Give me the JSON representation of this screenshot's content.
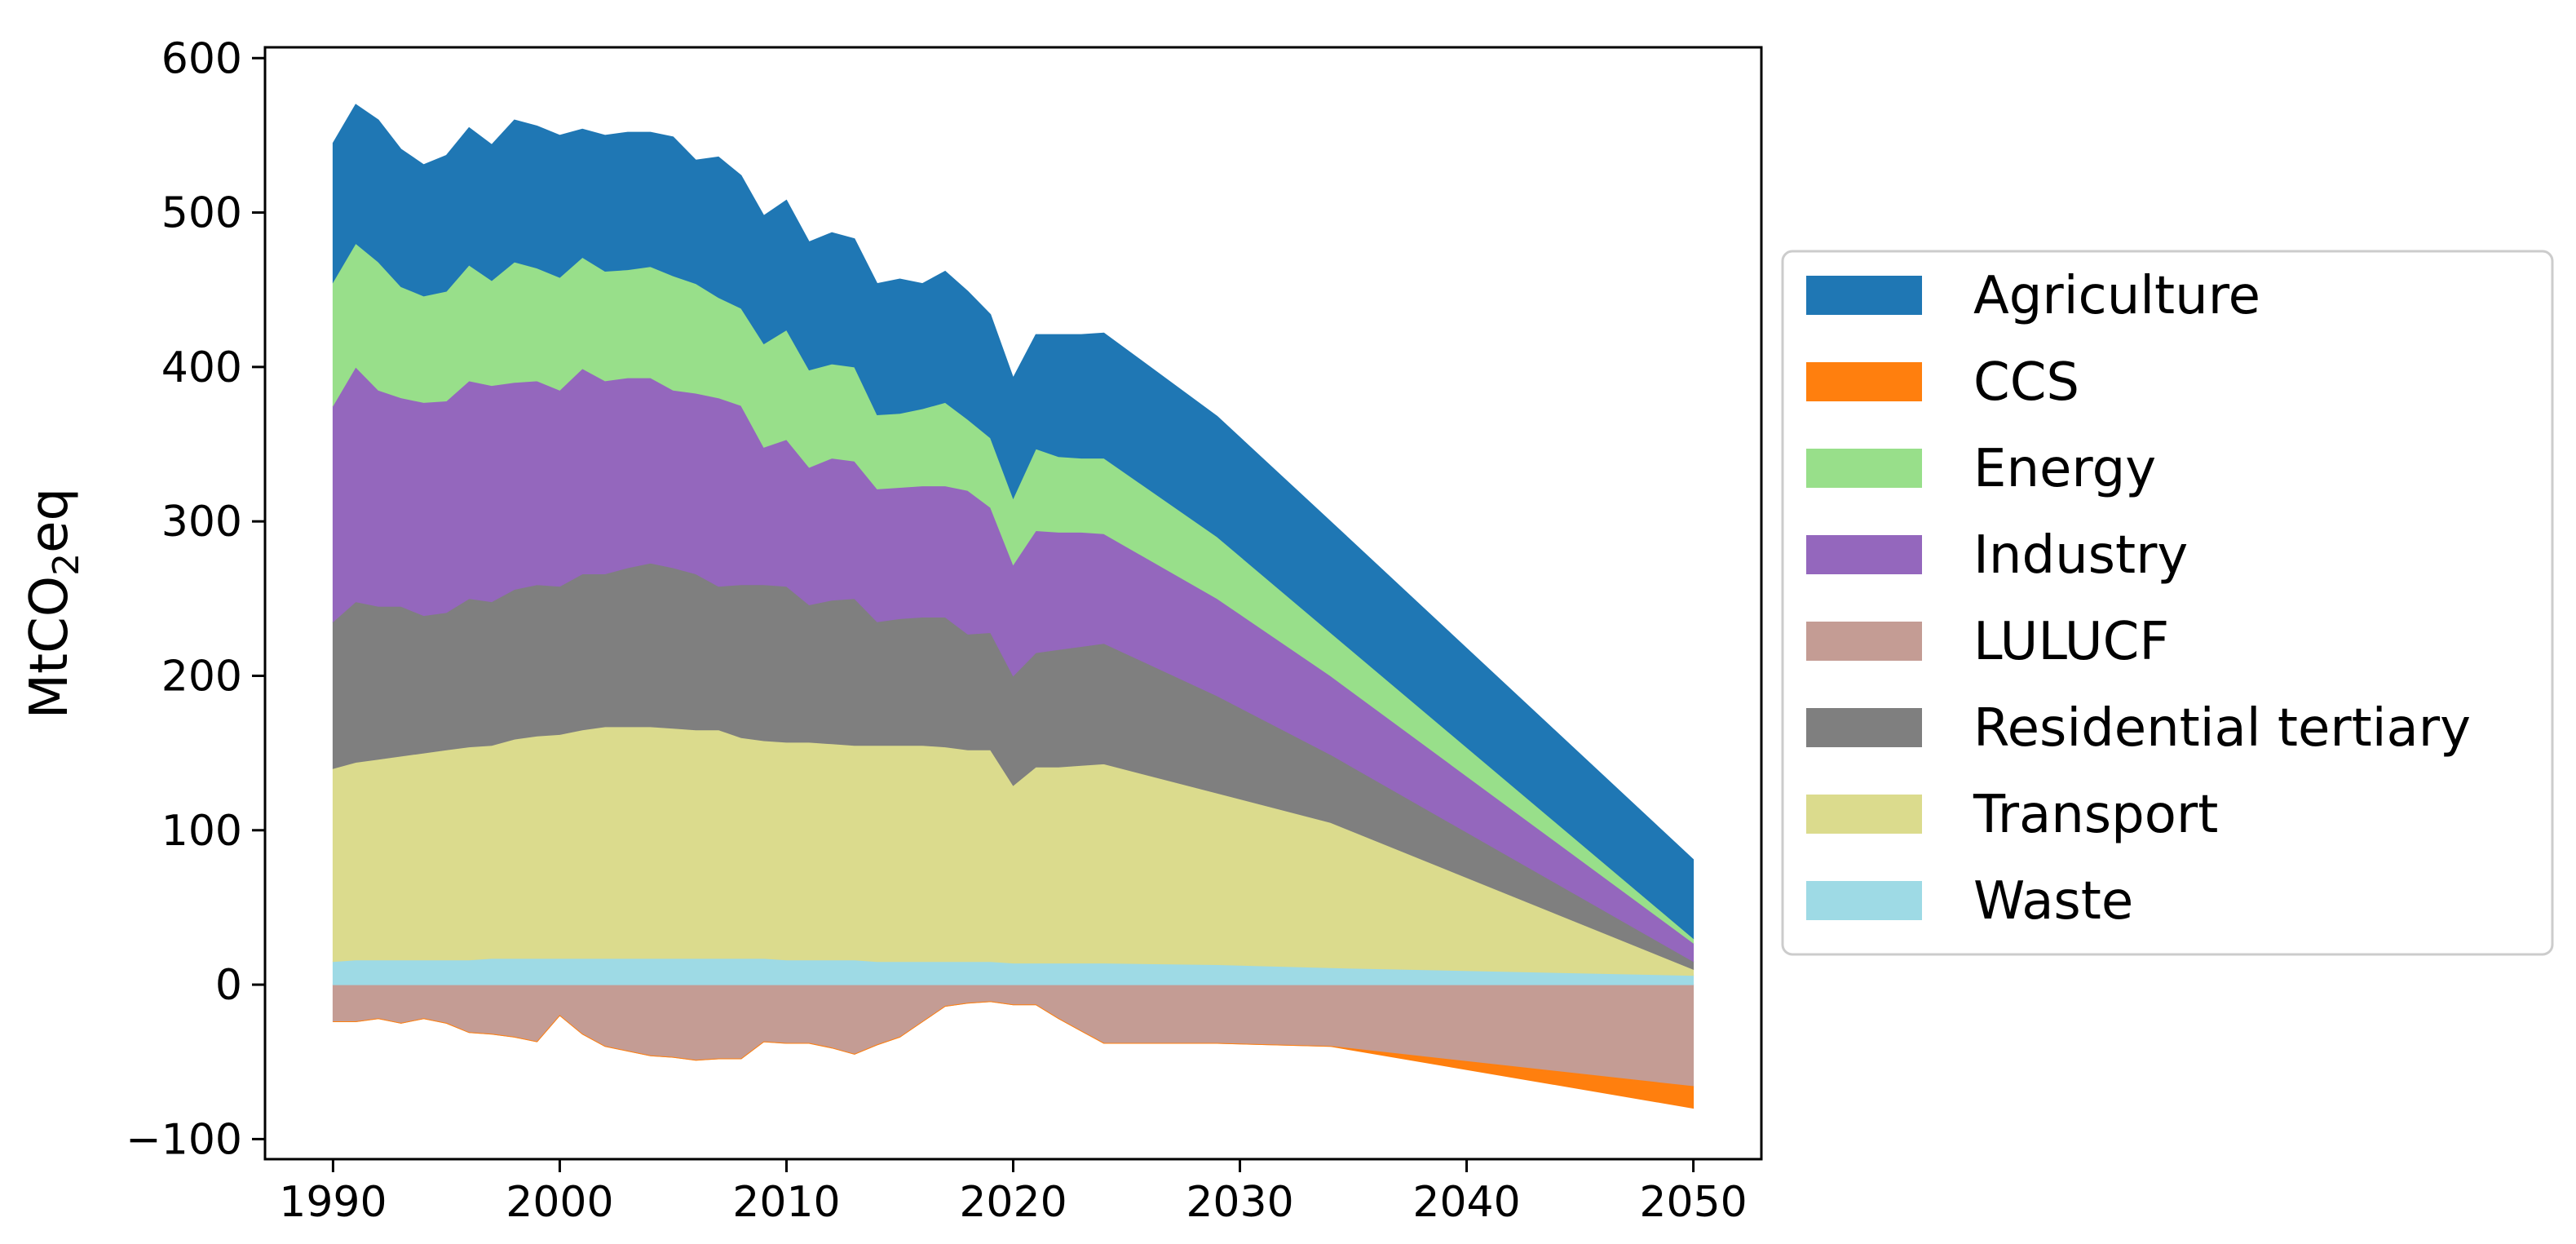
{
  "chart_data": {
    "type": "area",
    "stacked": true,
    "title": "",
    "xlabel": "",
    "ylabel": "MtCO2eq",
    "ylabel_parts": {
      "prefix": "MtCO",
      "subscript": "2",
      "suffix": "eq"
    },
    "xlim": [
      1987,
      2053
    ],
    "ylim": [
      -113,
      607
    ],
    "xticks": [
      1990,
      2000,
      2010,
      2020,
      2030,
      2040,
      2050
    ],
    "yticks": [
      -100,
      0,
      100,
      200,
      300,
      400,
      500,
      600
    ],
    "ytick_labels": [
      "−100",
      "0",
      "100",
      "200",
      "300",
      "400",
      "500",
      "600"
    ],
    "legend_position": "right",
    "x": [
      1990,
      1991,
      1992,
      1993,
      1994,
      1995,
      1996,
      1997,
      1998,
      1999,
      2000,
      2001,
      2002,
      2003,
      2004,
      2005,
      2006,
      2007,
      2008,
      2009,
      2010,
      2011,
      2012,
      2013,
      2014,
      2015,
      2016,
      2017,
      2018,
      2019,
      2020,
      2021,
      2022,
      2023,
      2024,
      2029,
      2034,
      2050
    ],
    "negative_series": [
      {
        "name": "LULUCF",
        "color": "#c49c94",
        "values": [
          -24,
          -24,
          -22,
          -25,
          -22,
          -25,
          -31,
          -32,
          -34,
          -37,
          -20,
          -32,
          -40,
          -43,
          -46,
          -47,
          -49,
          -48,
          -48,
          -37,
          -38,
          -38,
          -41,
          -45,
          -39,
          -34,
          -24,
          -14,
          -12,
          -11,
          -13,
          -13,
          -22,
          -30,
          -38,
          -38,
          -40,
          -66
        ]
      },
      {
        "name": "CCS",
        "color": "#ff7f0e",
        "values": [
          0,
          0,
          0,
          0,
          0,
          0,
          0,
          0,
          0,
          0,
          0,
          0,
          0,
          0,
          0,
          0,
          0,
          0,
          0,
          0,
          0,
          0,
          0,
          0,
          0,
          0,
          0,
          0,
          0,
          0,
          0,
          0,
          0,
          0,
          0,
          0,
          0,
          -14
        ]
      }
    ],
    "positive_series": [
      {
        "name": "Waste",
        "color": "#9edae5",
        "values": [
          15,
          16,
          16,
          16,
          16,
          16,
          16,
          17,
          17,
          17,
          17,
          17,
          17,
          17,
          17,
          17,
          17,
          17,
          17,
          17,
          16,
          16,
          16,
          16,
          15,
          15,
          15,
          15,
          15,
          15,
          14,
          14,
          14,
          14,
          14,
          13,
          11,
          6
        ]
      },
      {
        "name": "Transport",
        "color": "#dbdb8d",
        "values": [
          125,
          128,
          130,
          132,
          134,
          136,
          138,
          138,
          142,
          144,
          145,
          148,
          150,
          150,
          150,
          149,
          148,
          148,
          143,
          141,
          141,
          141,
          140,
          139,
          140,
          140,
          140,
          139,
          137,
          137,
          115,
          127,
          127,
          128,
          129,
          111,
          94,
          4
        ]
      },
      {
        "name": "Residential tertiary",
        "color": "#7f7f7f",
        "values": [
          95,
          104,
          99,
          97,
          89,
          89,
          96,
          93,
          97,
          98,
          96,
          101,
          99,
          103,
          106,
          104,
          101,
          93,
          99,
          101,
          101,
          89,
          93,
          95,
          80,
          82,
          83,
          84,
          75,
          76,
          71,
          74,
          76,
          77,
          78,
          63,
          44,
          5
        ]
      },
      {
        "name": "Industry",
        "color": "#9467bd",
        "values": [
          140,
          152,
          140,
          135,
          138,
          137,
          141,
          140,
          134,
          132,
          127,
          133,
          125,
          123,
          120,
          115,
          117,
          122,
          116,
          89,
          95,
          89,
          92,
          89,
          86,
          85,
          85,
          85,
          93,
          81,
          72,
          79,
          76,
          74,
          71,
          63,
          51,
          12
        ]
      },
      {
        "name": "Energy",
        "color": "#98df8a",
        "values": [
          80,
          80,
          83,
          72,
          69,
          71,
          75,
          68,
          78,
          73,
          73,
          72,
          71,
          70,
          72,
          74,
          71,
          65,
          63,
          67,
          71,
          63,
          61,
          61,
          48,
          48,
          50,
          54,
          46,
          45,
          43,
          53,
          49,
          48,
          49,
          40,
          28,
          3
        ]
      },
      {
        "name": "Agriculture",
        "color": "#1f77b4",
        "values": [
          90,
          90,
          92,
          89,
          85,
          88,
          89,
          88,
          92,
          92,
          92,
          83,
          88,
          89,
          87,
          90,
          80,
          91,
          86,
          83,
          84,
          83,
          85,
          83,
          85,
          87,
          81,
          85,
          83,
          80,
          78,
          74,
          79,
          80,
          81,
          78,
          72,
          51
        ]
      }
    ],
    "legend_order": [
      "Agriculture",
      "CCS",
      "Energy",
      "Industry",
      "LULUCF",
      "Residential tertiary",
      "Transport",
      "Waste"
    ]
  }
}
